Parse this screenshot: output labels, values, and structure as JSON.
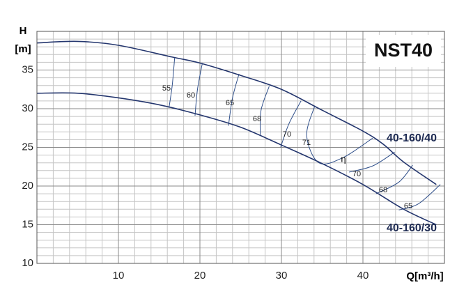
{
  "chart_data": {
    "type": "line",
    "title": "NST40",
    "y_label": [
      "H",
      "[m]"
    ],
    "x_label": "Q[m³/h]",
    "xlim": [
      0,
      50
    ],
    "ylim": [
      10,
      40
    ],
    "xticks": [
      10,
      20,
      30,
      40
    ],
    "yticks": [
      10,
      15,
      20,
      25,
      30,
      35
    ],
    "grid": true,
    "minor_grid": {
      "x": 2,
      "y": 1
    },
    "series": [
      {
        "name": "40-160/40",
        "color": "#24366e",
        "x": [
          0,
          5,
          10,
          16.5,
          20,
          25,
          30,
          35,
          40,
          42.5,
          45,
          49
        ],
        "values": [
          38.5,
          38.7,
          38.2,
          36.7,
          35.9,
          34.3,
          32.5,
          29.8,
          27.1,
          25.4,
          23.1,
          20.2
        ]
      },
      {
        "name": "40-160/30",
        "color": "#24366e",
        "x": [
          0,
          5,
          10,
          15,
          20,
          25,
          30,
          35,
          40,
          45,
          49
        ],
        "values": [
          32.0,
          32.0,
          31.4,
          30.5,
          29.2,
          27.6,
          25.3,
          22.9,
          20.2,
          17.0,
          15.0
        ]
      }
    ],
    "efficiency_symbol": "η",
    "efficiency_lines": [
      {
        "label": "55",
        "x": [
          16.9,
          16.6,
          16.2
        ],
        "y": [
          36.6,
          33.0,
          30.1
        ]
      },
      {
        "label": "60",
        "x": [
          20.3,
          19.7,
          19.4
        ],
        "y": [
          35.9,
          32.5,
          29.1
        ]
      },
      {
        "label": "65",
        "x": [
          24.8,
          24.0,
          23.5
        ],
        "y": [
          34.5,
          31.4,
          27.8
        ]
      },
      {
        "label": "68",
        "x": [
          28.5,
          27.5,
          27.4
        ],
        "y": [
          32.9,
          29.8,
          26.6
        ]
      },
      {
        "label": "70",
        "x": [
          32.4,
          30.9,
          29.9
        ],
        "y": [
          31.0,
          28.0,
          25.0
        ]
      },
      {
        "label": "71",
        "x": [
          34.1,
          33.1,
          34.6,
          37.6,
          41.2
        ],
        "y": [
          30.4,
          26.5,
          23.0,
          23.7,
          26.2
        ]
      },
      {
        "label": "70",
        "x": [
          43.9,
          41.2,
          38.3
        ],
        "y": [
          24.4,
          22.6,
          21.8
        ]
      },
      {
        "label": "68",
        "x": [
          46.1,
          44.4,
          41.6
        ],
        "y": [
          22.7,
          20.5,
          19.0
        ]
      },
      {
        "label": "65",
        "x": [
          49.5,
          46.8,
          44.4
        ],
        "y": [
          20.2,
          17.7,
          16.9
        ]
      }
    ]
  }
}
